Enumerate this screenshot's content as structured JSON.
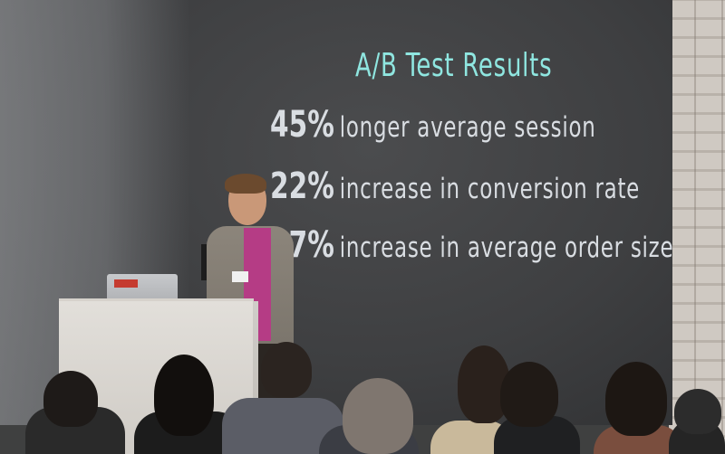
{
  "slide": {
    "title": "A/B Test Results",
    "stats": [
      {
        "percent": "45%",
        "text": "longer average session"
      },
      {
        "percent": "22%",
        "text": "increase in conversion rate"
      },
      {
        "percent": "27%",
        "text": "increase in average order size"
      }
    ]
  },
  "colors": {
    "title": "#8fe6e0",
    "stat_text": "#d9dde2",
    "screen": "#3e3f41",
    "speaker_shirt": "#b53c85"
  }
}
